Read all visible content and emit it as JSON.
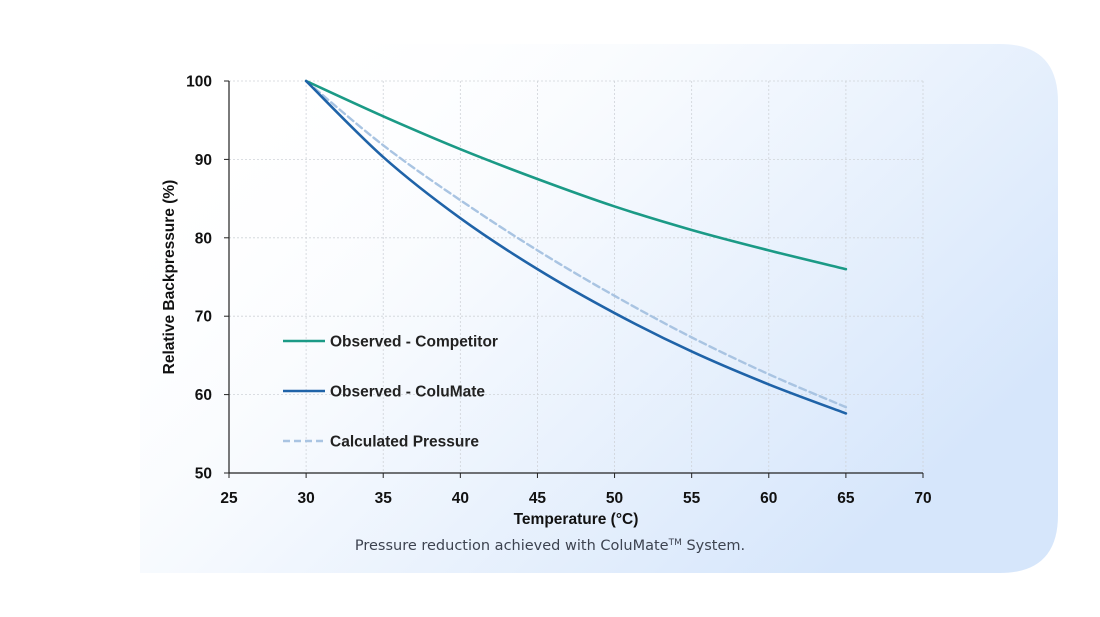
{
  "colors": {
    "competitor": "#1b9a86",
    "columate": "#1f63a8",
    "calculated": "#a9c4e2",
    "card_gradient_start": "#ffffff",
    "card_gradient_end": "#d6e6fb"
  },
  "caption": {
    "prefix": "Pressure reduction achieved with ColuMate",
    "tm": "TM",
    "suffix": " System."
  },
  "chart_data": {
    "type": "line",
    "xlabel": "Temperature (°C)",
    "ylabel": "Relative Backpressure (%)",
    "xlim": [
      25,
      70
    ],
    "ylim": [
      50,
      100
    ],
    "xticks": [
      25,
      30,
      35,
      40,
      45,
      50,
      55,
      60,
      65,
      70
    ],
    "yticks": [
      50,
      60,
      70,
      80,
      90,
      100
    ],
    "grid": true,
    "legend_position": "lower-left",
    "series": [
      {
        "name": "Observed - Competitor",
        "style": "solid",
        "color": "#1b9a86",
        "x": [
          30,
          35,
          40,
          45,
          50,
          55,
          60,
          65
        ],
        "y": [
          100,
          95.5,
          91.3,
          87.5,
          84.0,
          81.0,
          78.4,
          76.0
        ]
      },
      {
        "name": "Observed - ColuMate",
        "style": "solid",
        "color": "#1f63a8",
        "x": [
          30,
          35,
          40,
          45,
          50,
          55,
          60,
          65
        ],
        "y": [
          100,
          90.3,
          82.5,
          76.0,
          70.4,
          65.5,
          61.3,
          57.6
        ]
      },
      {
        "name": "Calculated Pressure",
        "style": "dashed",
        "color": "#a9c4e2",
        "x": [
          30,
          35,
          40,
          45,
          50,
          55,
          60,
          65
        ],
        "y": [
          100,
          91.8,
          84.8,
          78.4,
          72.6,
          67.3,
          62.6,
          58.4
        ]
      }
    ]
  }
}
